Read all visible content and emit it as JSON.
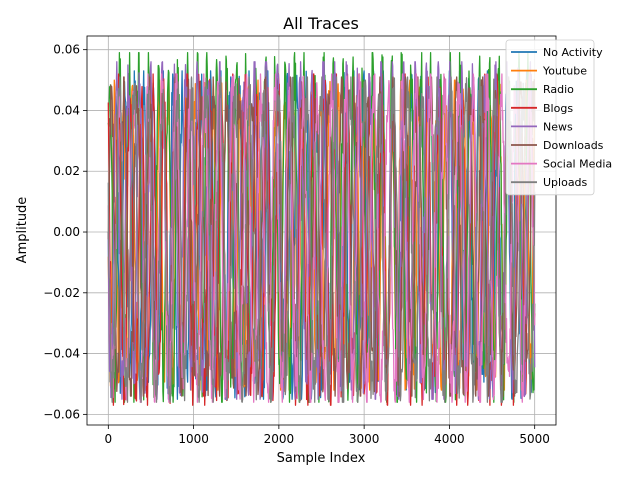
{
  "chart_data": {
    "type": "line",
    "title": "All Traces",
    "xlabel": "Sample Index",
    "ylabel": "Amplitude",
    "xlim": [
      -250,
      5250
    ],
    "ylim": [
      -0.0635,
      0.0645
    ],
    "xticks": [
      0,
      1000,
      2000,
      3000,
      4000,
      5000
    ],
    "yticks": [
      -0.06,
      -0.04,
      -0.02,
      0.0,
      0.02,
      0.04,
      0.06
    ],
    "ytick_labels": [
      "−0.06",
      "−0.04",
      "−0.02",
      "0.00",
      "0.02",
      "0.04",
      "0.06"
    ],
    "grid": true,
    "legend_position": "upper-right",
    "n_samples": 5000,
    "series": [
      {
        "name": "No Activity",
        "color": "#1f77b4",
        "amplitude_range": [
          -0.055,
          0.053
        ]
      },
      {
        "name": "Youtube",
        "color": "#ff7f0e",
        "amplitude_range": [
          -0.052,
          0.05
        ]
      },
      {
        "name": "Radio",
        "color": "#2ca02c",
        "amplitude_range": [
          -0.056,
          0.059
        ]
      },
      {
        "name": "Blogs",
        "color": "#d62728",
        "amplitude_range": [
          -0.057,
          0.052
        ]
      },
      {
        "name": "News",
        "color": "#9467bd",
        "amplitude_range": [
          -0.055,
          0.056
        ]
      },
      {
        "name": "Downloads",
        "color": "#8c564b",
        "amplitude_range": [
          -0.054,
          0.051
        ]
      },
      {
        "name": "Social Media",
        "color": "#e377c2",
        "amplitude_range": [
          -0.056,
          0.052
        ]
      },
      {
        "name": "Uploads",
        "color": "#7f7f7f",
        "amplitude_range": [
          -0.056,
          0.051
        ]
      }
    ]
  }
}
